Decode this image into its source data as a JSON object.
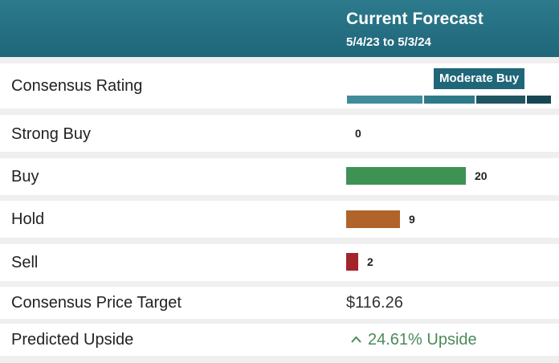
{
  "header": {
    "title": "Current Forecast",
    "date_range": "5/4/23 to 5/3/24"
  },
  "consensus_rating": {
    "label": "Consensus Rating",
    "value": "Moderate Buy"
  },
  "ratings": [
    {
      "label": "Strong Buy",
      "count": 0,
      "color": "#3a9a57"
    },
    {
      "label": "Buy",
      "count": 20,
      "color": "#3e9254"
    },
    {
      "label": "Hold",
      "count": 9,
      "color": "#b0642a"
    },
    {
      "label": "Sell",
      "count": 2,
      "color": "#a3242a"
    }
  ],
  "price_target": {
    "label": "Consensus Price Target",
    "value": "$116.26"
  },
  "upside": {
    "label": "Predicted Upside",
    "icon": "chevron-up-icon",
    "value": "24.61% Upside"
  }
}
